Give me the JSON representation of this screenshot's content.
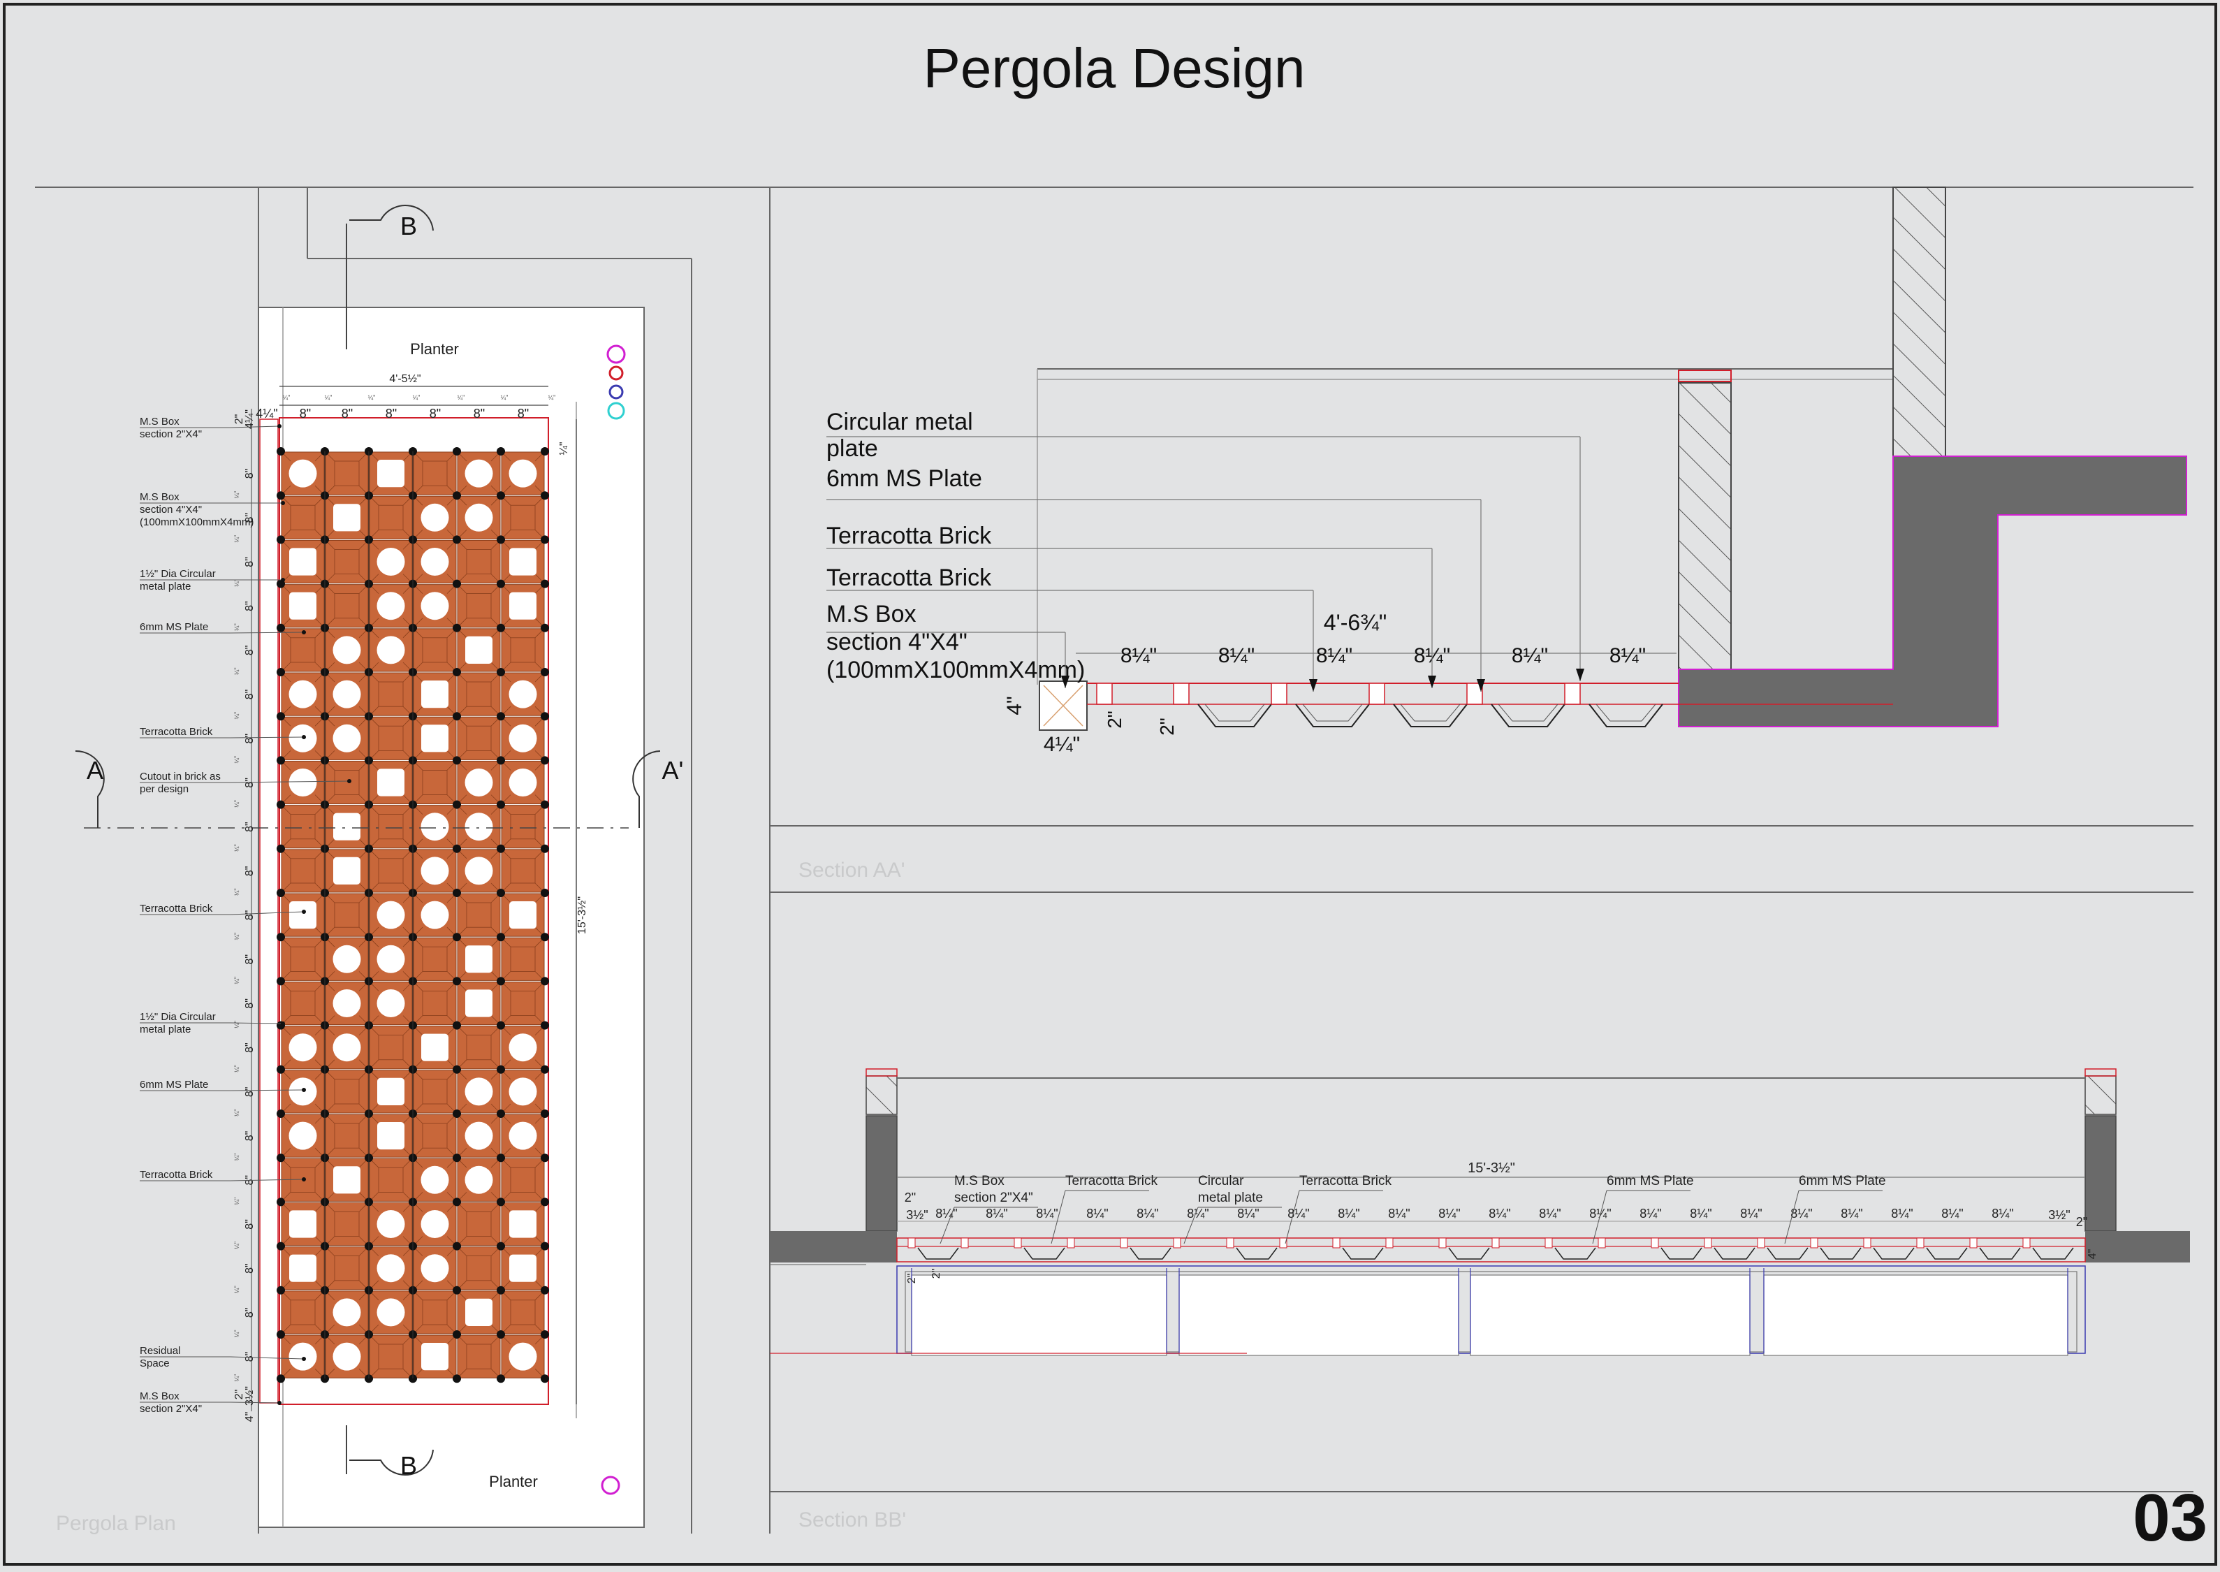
{
  "title": "Pergola Design",
  "sheet_number": "03",
  "plan": {
    "caption": "Pergola Plan",
    "planter_top": "Planter",
    "planter_bottom": "Planter",
    "section_mark_b": "B",
    "section_mark_a_left": "A",
    "section_mark_a_right": "A'",
    "width_dim": "4'-5½\"",
    "length_dim": "15'-3½\"",
    "top_dims": [
      "4¼\"",
      "8\"",
      "8\"",
      "8\"",
      "8\"",
      "8\"",
      "8\""
    ],
    "module_dim": "8\"",
    "small_dim": "¼\"",
    "side_dims": [
      "2\"",
      "4¼\"",
      "2\"",
      "3½\"",
      "4\""
    ],
    "labels": [
      {
        "lines": [
          "M.S Box",
          "section 2\"X4\""
        ]
      },
      {
        "lines": [
          "M.S Box",
          "section 4\"X4\"",
          "(100mmX100mmX4mm)"
        ]
      },
      {
        "lines": [
          "1½\" Dia Circular",
          "metal plate"
        ]
      },
      {
        "lines": [
          "6mm MS Plate"
        ]
      },
      {
        "lines": [
          "Terracotta Brick"
        ]
      },
      {
        "lines": [
          "Cutout in brick as",
          "per design"
        ]
      },
      {
        "lines": [
          "Terracotta Brick"
        ]
      },
      {
        "lines": [
          "1½\" Dia Circular",
          "metal plate"
        ]
      },
      {
        "lines": [
          "6mm MS Plate"
        ]
      },
      {
        "lines": [
          "Terracotta Brick"
        ]
      },
      {
        "lines": [
          "Residual",
          "Space"
        ]
      },
      {
        "lines": [
          "M.S Box",
          "section 2\"X4\""
        ]
      }
    ]
  },
  "section_aa": {
    "caption": "Section AA'",
    "labels": [
      {
        "lines": [
          "Circular metal",
          "plate"
        ]
      },
      {
        "lines": [
          "6mm MS Plate"
        ]
      },
      {
        "lines": [
          "Terracotta Brick"
        ]
      },
      {
        "lines": [
          "Terracotta Brick"
        ]
      },
      {
        "lines": [
          "M.S Box",
          "section 4\"X4\"",
          "(100mmX100mmX4mm)"
        ]
      }
    ],
    "overall_dim": "4'-6¾\"",
    "module_dims": [
      "8¼\"",
      "8¼\"",
      "8¼\"",
      "8¼\"",
      "8¼\"",
      "8¼\""
    ],
    "box_height": "4\"",
    "box_width": "4¼\"",
    "small_dims": [
      "2\"",
      "2\""
    ]
  },
  "section_bb": {
    "caption": "Section BB'",
    "overall_dim": "15'-3½\"",
    "labels": [
      {
        "lines": [
          "M.S Box",
          "section 2\"X4\""
        ]
      },
      {
        "lines": [
          "Terracotta Brick"
        ]
      },
      {
        "lines": [
          "Circular",
          "metal plate"
        ]
      },
      {
        "lines": [
          "Terracotta Brick"
        ]
      },
      {
        "lines": [
          "6mm MS Plate"
        ]
      },
      {
        "lines": [
          "6mm MS Plate"
        ]
      }
    ],
    "module_dim": "8¼\"",
    "edge_dims": [
      "2\"",
      "3½\"",
      "3½\"",
      "2\"",
      "4\"",
      "2\"",
      "2\""
    ]
  },
  "colors": {
    "brick": "#c8673a",
    "brick_edge": "#8a3f1c",
    "wall": "#6a6a6a",
    "red_line": "#d11e2a",
    "magenta": "#d11fd1",
    "blue": "#3b3bb0",
    "cyan": "#2fd0d0"
  }
}
